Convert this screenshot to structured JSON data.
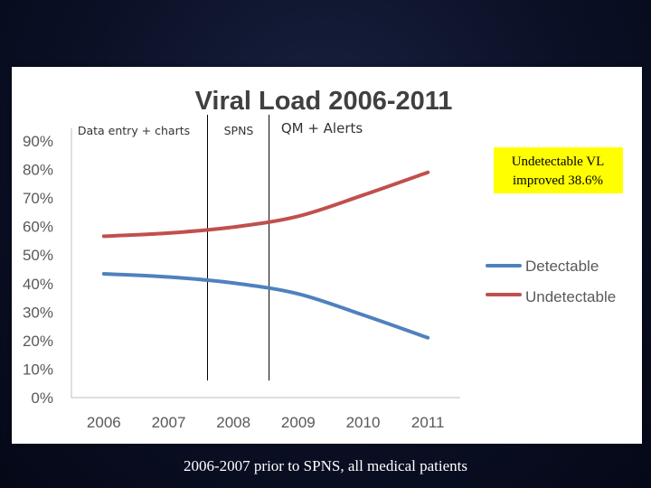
{
  "chart_data": {
    "type": "line",
    "title": "Viral Load 2006-2011",
    "categories": [
      "2006",
      "2007",
      "2008",
      "2009",
      "2010",
      "2011"
    ],
    "y_ticks": [
      "0%",
      "10%",
      "20%",
      "30%",
      "40%",
      "50%",
      "60%",
      "70%",
      "80%",
      "90%"
    ],
    "ylim": [
      0,
      90
    ],
    "xlabel": "",
    "ylabel": "",
    "grid": false,
    "legend_position": "right",
    "series": [
      {
        "name": "Detectable",
        "color": "#4f81bd",
        "values": [
          43.4,
          42.3,
          40.2,
          36.4,
          29.0,
          21.0
        ]
      },
      {
        "name": "Undetectable",
        "color": "#c0504d",
        "values": [
          56.6,
          57.7,
          59.8,
          63.6,
          71.0,
          79.0
        ]
      }
    ],
    "annotations": {
      "phases": [
        "Data entry + charts",
        "SPNS",
        "QM + Alerts"
      ],
      "phase_divider_after": [
        2007.6,
        2008.55
      ],
      "callout": [
        "Undetectable VL",
        "improved 38.6%"
      ],
      "callout_color": "#ffff00"
    }
  },
  "footnote": "2006-2007 prior to SPNS, all medical patients"
}
